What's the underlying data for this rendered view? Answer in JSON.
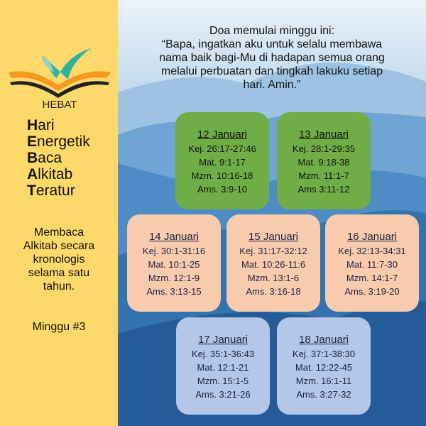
{
  "logo": {
    "text": "HEBAT",
    "colors": {
      "teal": "#2bb3a0",
      "orange": "#f29a1f"
    }
  },
  "acronym": [
    {
      "first": "H",
      "rest": "ari"
    },
    {
      "first": "E",
      "rest": "nergetik"
    },
    {
      "first": "B",
      "rest": "aca"
    },
    {
      "first": "A",
      "rest": "lkitab"
    },
    {
      "first": "T",
      "rest": "eratur"
    }
  ],
  "description": [
    "Membaca",
    "Alkitab secara",
    "kronologis",
    "selama satu",
    "tahun."
  ],
  "week": "Minggu #3",
  "prayer": {
    "heading": "Doa memulai minggu ini:",
    "lines": [
      "“Bapa, ingatkan aku untuk selalu membawa",
      "nama baik bagi-Mu di hadapan semua orang",
      "melalui perbuatan dan tingkah lakuku setiap",
      "hari. Amin.”"
    ]
  },
  "cards": [
    {
      "date": "12 Januari",
      "readings": [
        "Kej. 26:17-27:46",
        "Mat. 9:1-17",
        "Mzm. 10:16-18",
        "Ams. 3:9-10"
      ],
      "color": "#71ad47"
    },
    {
      "date": "13 Januari",
      "readings": [
        "Kej. 28:1-29:35",
        "Mat. 9:18-38",
        "Mzm. 11:1-7",
        "Ams 3:11-12"
      ],
      "color": "#71ad47"
    },
    {
      "date": "14 Januari",
      "readings": [
        "Kej. 30:1-31:16",
        "Mat. 10:1-25",
        "Mzm. 12:1-9",
        "Ams. 3:13-15"
      ],
      "color": "#f8cbad"
    },
    {
      "date": "15 Januari",
      "readings": [
        "Kej. 31:17-32:12",
        "Mat. 10:26-11:6",
        "Mzm. 13:1-6",
        "Ams. 3:16-18"
      ],
      "color": "#f8cbad"
    },
    {
      "date": "16 Januari",
      "readings": [
        "Kej. 32:13-34:31",
        "Mat. 11:7-30",
        "Mzm. 14:1-7",
        "Ams. 3:19-20"
      ],
      "color": "#f8cbad"
    },
    {
      "date": "17 Januari",
      "readings": [
        "Kej. 35:1-36:43",
        "Mat. 12:1-21",
        "Mzm. 15:1-5",
        "Ams. 3:21-26"
      ],
      "color": "#b4c7e7"
    },
    {
      "date": "18 Januari",
      "readings": [
        "Kej. 37:1-38:30",
        "Mat. 12:22-45",
        "Mzm. 16:1-11",
        "Ams. 3:27-32"
      ],
      "color": "#b4c7e7"
    }
  ]
}
